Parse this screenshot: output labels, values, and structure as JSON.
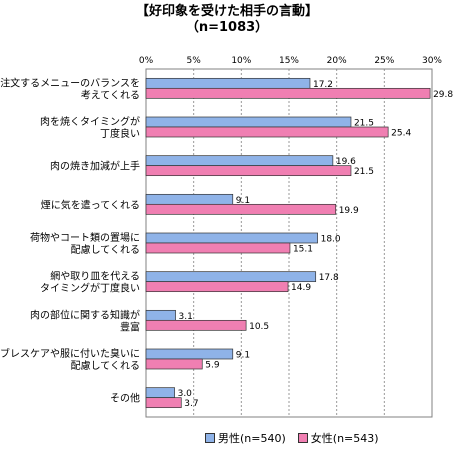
{
  "title_line1": "【好印象を受けた相手の言動】",
  "title_line2": "（n=1083）",
  "colors": {
    "male": "#8fb3e8",
    "female": "#f07fb2",
    "grid": "#9a9a9a"
  },
  "legend": {
    "male": "男性(n=540)",
    "female": "女性(n=543)"
  },
  "chart_data": {
    "type": "bar",
    "orientation": "horizontal",
    "title": "【好印象を受けた相手の言動】（n=1083）",
    "xlim": [
      0,
      30
    ],
    "x_ticks": [
      "0%",
      "5%",
      "10%",
      "15%",
      "20%",
      "25%",
      "30%"
    ],
    "categories": [
      [
        "注文するメニューのバランスを",
        "考えてくれる"
      ],
      [
        "肉を焼くタイミングが",
        "丁度良い"
      ],
      [
        "肉の焼き加減が上手"
      ],
      [
        "煙に気を遣ってくれる"
      ],
      [
        "荷物やコート類の置場に",
        "配慮してくれる"
      ],
      [
        "網や取り皿を代える",
        "タイミングが丁度良い"
      ],
      [
        "肉の部位に関する知識が",
        "豊富"
      ],
      [
        "ブレスケアや服に付いた臭いに",
        "配慮してくれる"
      ],
      [
        "その他"
      ]
    ],
    "series": [
      {
        "name": "男性(n=540)",
        "values": [
          17.2,
          21.5,
          19.6,
          9.1,
          18.0,
          17.8,
          3.1,
          9.1,
          3.0
        ]
      },
      {
        "name": "女性(n=543)",
        "values": [
          29.8,
          25.4,
          21.5,
          19.9,
          15.1,
          14.9,
          10.5,
          5.9,
          3.7
        ]
      }
    ],
    "grid": true,
    "legend_position": "bottom"
  }
}
